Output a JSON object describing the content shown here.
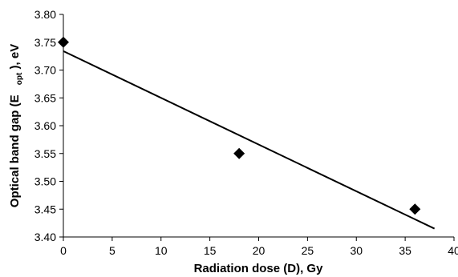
{
  "chart_data": {
    "type": "scatter",
    "title": "",
    "xlabel": "Radiation dose (D), Gy",
    "ylabel": {
      "prefix": "Optical band gap (E",
      "subscript": "opt",
      "suffix": "), eV"
    },
    "xlim": [
      0,
      40
    ],
    "ylim": [
      3.4,
      3.8
    ],
    "x_ticks": [
      "0",
      "5",
      "10",
      "15",
      "20",
      "25",
      "30",
      "35",
      "40"
    ],
    "y_ticks": [
      "3.40",
      "3.45",
      "3.50",
      "3.55",
      "3.60",
      "3.65",
      "3.70",
      "3.75",
      "3.80"
    ],
    "grid": false,
    "legend": "none",
    "series": [
      {
        "kind": "points",
        "marker": "diamond",
        "color": "#000000",
        "x": [
          0,
          18,
          36
        ],
        "y": [
          3.75,
          3.55,
          3.45
        ]
      },
      {
        "kind": "fit-line",
        "color": "#000000",
        "x": [
          0,
          38
        ],
        "y": [
          3.734,
          3.415
        ]
      }
    ]
  }
}
